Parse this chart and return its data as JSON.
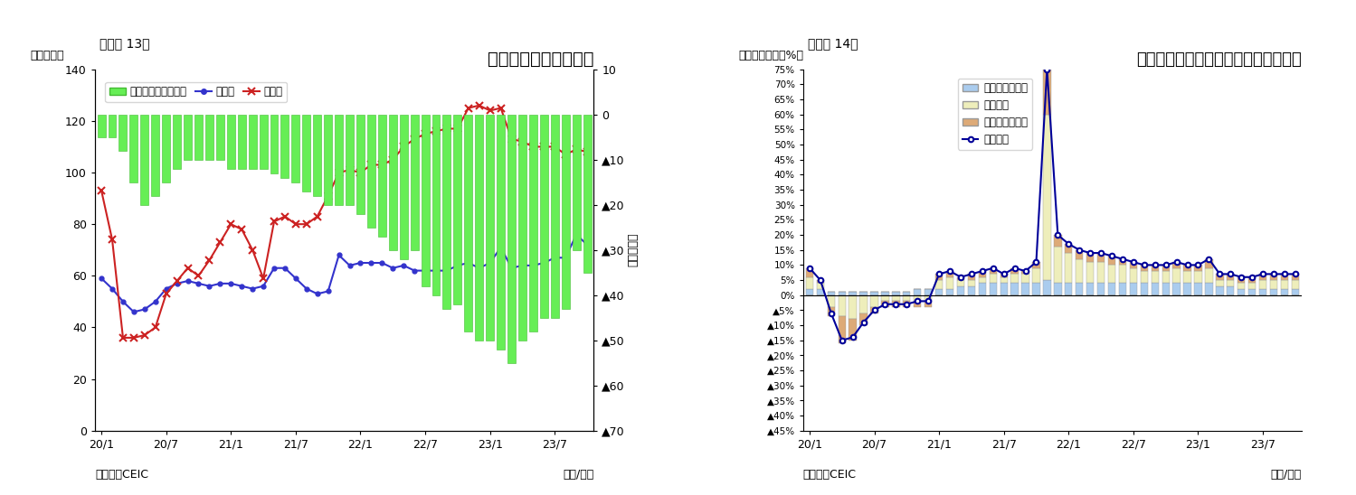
{
  "chart1": {
    "title": "フィリピンの貳易収支",
    "title_label": "（図表 13）",
    "ylabel_left": "（億ドル）",
    "ylabel_right": "（億ドル）",
    "source": "（資料）CEIC",
    "xlabel": "（年/月）",
    "bar_color": "#66ee55",
    "bar_edge_color": "#44bb33",
    "export_color": "#3333cc",
    "import_color": "#cc2222",
    "xtick_labels": [
      "20/1",
      "20/7",
      "21/1",
      "21/7",
      "22/1",
      "22/7",
      "23/1",
      "23/7"
    ],
    "legend_bar": "貳易収支（右目盛）",
    "legend_exp": "輸出額",
    "legend_imp": "輸入額",
    "export_vals": [
      59,
      55,
      50,
      46,
      47,
      50,
      55,
      57,
      58,
      57,
      56,
      57,
      57,
      56,
      55,
      56,
      63,
      63,
      59,
      55,
      53,
      54,
      68,
      64,
      65,
      65,
      65,
      63,
      64,
      62,
      62,
      62,
      62,
      64,
      65,
      63,
      65,
      71,
      63,
      64,
      64,
      65,
      67,
      67,
      76,
      72
    ],
    "import_vals": [
      93,
      74,
      36,
      36,
      37,
      40,
      53,
      58,
      63,
      60,
      66,
      73,
      80,
      78,
      70,
      59,
      81,
      83,
      80,
      80,
      83,
      91,
      100,
      101,
      100,
      103,
      103,
      105,
      110,
      113,
      115,
      116,
      117,
      117,
      125,
      126,
      124,
      125,
      113,
      112,
      110,
      110,
      110,
      107,
      109,
      108
    ],
    "trade_bal_right": [
      -5,
      -5,
      -8,
      -15,
      -20,
      -18,
      -15,
      -12,
      -10,
      -10,
      -10,
      -10,
      -12,
      -12,
      -12,
      -12,
      -13,
      -14,
      -15,
      -17,
      -18,
      -20,
      -20,
      -20,
      -22,
      -25,
      -27,
      -30,
      -32,
      -30,
      -38,
      -40,
      -43,
      -42,
      -48,
      -50,
      -50,
      -52,
      -55,
      -50,
      -48,
      -45,
      -45,
      -43,
      -30,
      -35
    ]
  },
  "chart2": {
    "title": "フィリピン　輸出の伸び率（品目別）",
    "title_label": "（図表 14）",
    "ylabel": "（前年同期比、%）",
    "source": "（資料）CEIC",
    "xlabel": "（年/月）",
    "xtick_labels": [
      "20/1",
      "20/7",
      "21/1",
      "21/7",
      "22/1",
      "22/7",
      "23/1",
      "23/7"
    ],
    "ytick_labels": [
      "75%",
      "70%",
      "65%",
      "60%",
      "55%",
      "50%",
      "45%",
      "40%",
      "35%",
      "30%",
      "25%",
      "20%",
      "15%",
      "10%",
      "5%",
      "0%",
      "▲5%",
      "▲10%",
      "▲15%",
      "▲20%",
      "▲25%",
      "▲30%",
      "▲35%",
      "▲40%",
      "▲45%"
    ],
    "ytick_vals": [
      75,
      70,
      65,
      60,
      55,
      50,
      45,
      40,
      35,
      30,
      25,
      20,
      15,
      10,
      5,
      0,
      -5,
      -10,
      -15,
      -20,
      -25,
      -30,
      -35,
      -40,
      -45
    ],
    "color_primary": "#aaccee",
    "color_electronic": "#eeeebb",
    "color_other": "#ddaa77",
    "line_color": "#000099",
    "legend_primary": "一次産品・燃料",
    "legend_electronic": "電子製品",
    "legend_other": "その他製品など",
    "legend_total": "輸出合計",
    "primary_vals": [
      2,
      2,
      1,
      1,
      1,
      1,
      1,
      1,
      1,
      1,
      2,
      2,
      2,
      2,
      3,
      3,
      4,
      4,
      4,
      4,
      4,
      4,
      5,
      4,
      4,
      4,
      4,
      4,
      4,
      4,
      4,
      4,
      4,
      4,
      4,
      4,
      4,
      4,
      3,
      3,
      2,
      2,
      2,
      2,
      2,
      2
    ],
    "electronic_vals": [
      4,
      2,
      -4,
      -7,
      -8,
      -6,
      -4,
      -2,
      -2,
      -2,
      -2,
      -2,
      3,
      4,
      2,
      2,
      2,
      3,
      2,
      3,
      3,
      5,
      55,
      12,
      10,
      8,
      7,
      7,
      6,
      6,
      5,
      4,
      4,
      4,
      5,
      4,
      4,
      5,
      2,
      2,
      2,
      2,
      3,
      3,
      3,
      3
    ],
    "other_vals": [
      3,
      1,
      -3,
      -9,
      -7,
      -4,
      -2,
      -2,
      -2,
      -2,
      -2,
      -2,
      2,
      2,
      1,
      2,
      2,
      2,
      1,
      2,
      1,
      2,
      15,
      4,
      3,
      3,
      3,
      3,
      3,
      2,
      2,
      2,
      2,
      2,
      2,
      2,
      2,
      3,
      2,
      2,
      2,
      2,
      2,
      2,
      2,
      2
    ],
    "total_vals": [
      9,
      5,
      -6,
      -15,
      -14,
      -9,
      -5,
      -3,
      -3,
      -3,
      -2,
      -2,
      7,
      8,
      6,
      7,
      8,
      9,
      7,
      9,
      8,
      11,
      75,
      20,
      17,
      15,
      14,
      14,
      13,
      12,
      11,
      10,
      10,
      10,
      11,
      10,
      10,
      12,
      7,
      7,
      6,
      6,
      7,
      7,
      7,
      7
    ]
  }
}
